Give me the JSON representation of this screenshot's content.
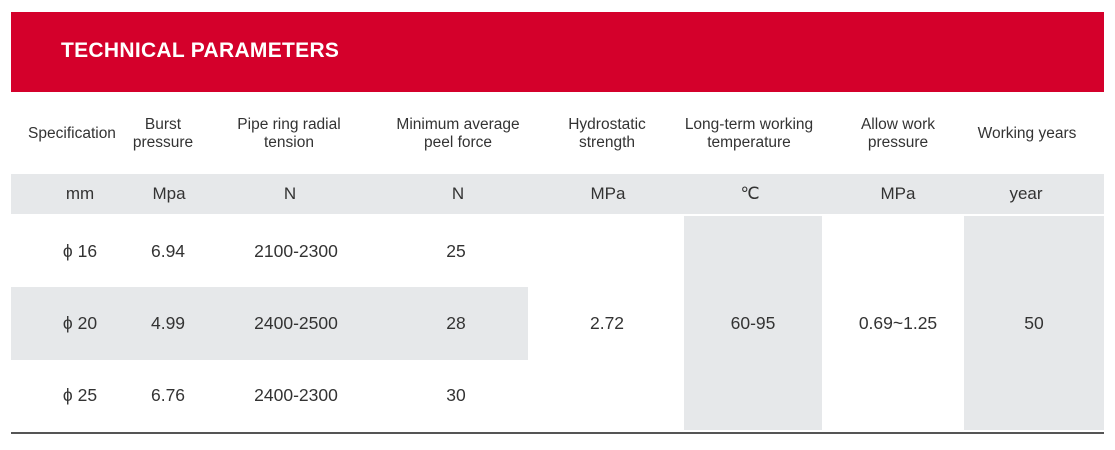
{
  "header": {
    "title": "TECHNICAL PARAMETERS"
  },
  "table": {
    "columns": [
      {
        "label": "Specification",
        "unit": "mm"
      },
      {
        "label": "Burst pressure",
        "unit": "Mpa"
      },
      {
        "label": "Pipe ring radial tension",
        "unit": "N"
      },
      {
        "label": "Minimum average peel force",
        "unit": "N"
      },
      {
        "label": "Hydrostatic strength",
        "unit": "MPa"
      },
      {
        "label": "Long-term working temperature",
        "unit": "℃"
      },
      {
        "label": "Allow work pressure",
        "unit": "MPa"
      },
      {
        "label": "Working years",
        "unit": "year"
      }
    ],
    "rows": [
      {
        "spec": "ϕ 16",
        "burst": "6.94",
        "tension": "2100-2300",
        "peel": "25"
      },
      {
        "spec": "ϕ 20",
        "burst": "4.99",
        "tension": "2400-2500",
        "peel": "28"
      },
      {
        "spec": "ϕ 25",
        "burst": "6.76",
        "tension": "2400-2300",
        "peel": "30"
      }
    ],
    "shared": {
      "hydrostatic": "2.72",
      "temperature": "60-95",
      "allow_pressure": "0.69~1.25",
      "years": "50"
    }
  },
  "colors": {
    "brand_red": "#d4002b",
    "band_gray": "#e6e8ea"
  }
}
